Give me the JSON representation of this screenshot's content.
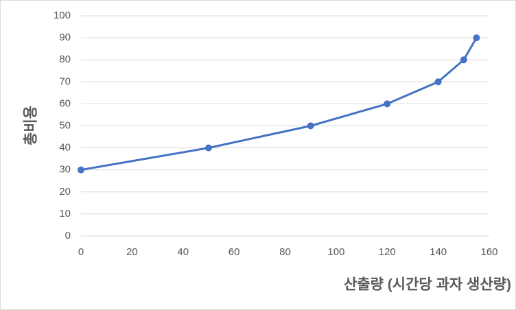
{
  "chart_data": {
    "type": "line",
    "x_label": "산출량 (시간당 과자 생산량)",
    "y_label": "총비용",
    "x": [
      0,
      50,
      90,
      120,
      140,
      150,
      155
    ],
    "values": [
      30,
      40,
      50,
      60,
      70,
      80,
      90
    ],
    "color": "#4472c4",
    "xlim": [
      0,
      160
    ],
    "xticks": [
      0,
      20,
      40,
      60,
      80,
      100,
      120,
      140,
      160
    ],
    "ylim": [
      0,
      100
    ],
    "yticks": [
      0,
      10,
      20,
      30,
      40,
      50,
      60,
      70,
      80,
      90,
      100
    ],
    "grid": true
  }
}
